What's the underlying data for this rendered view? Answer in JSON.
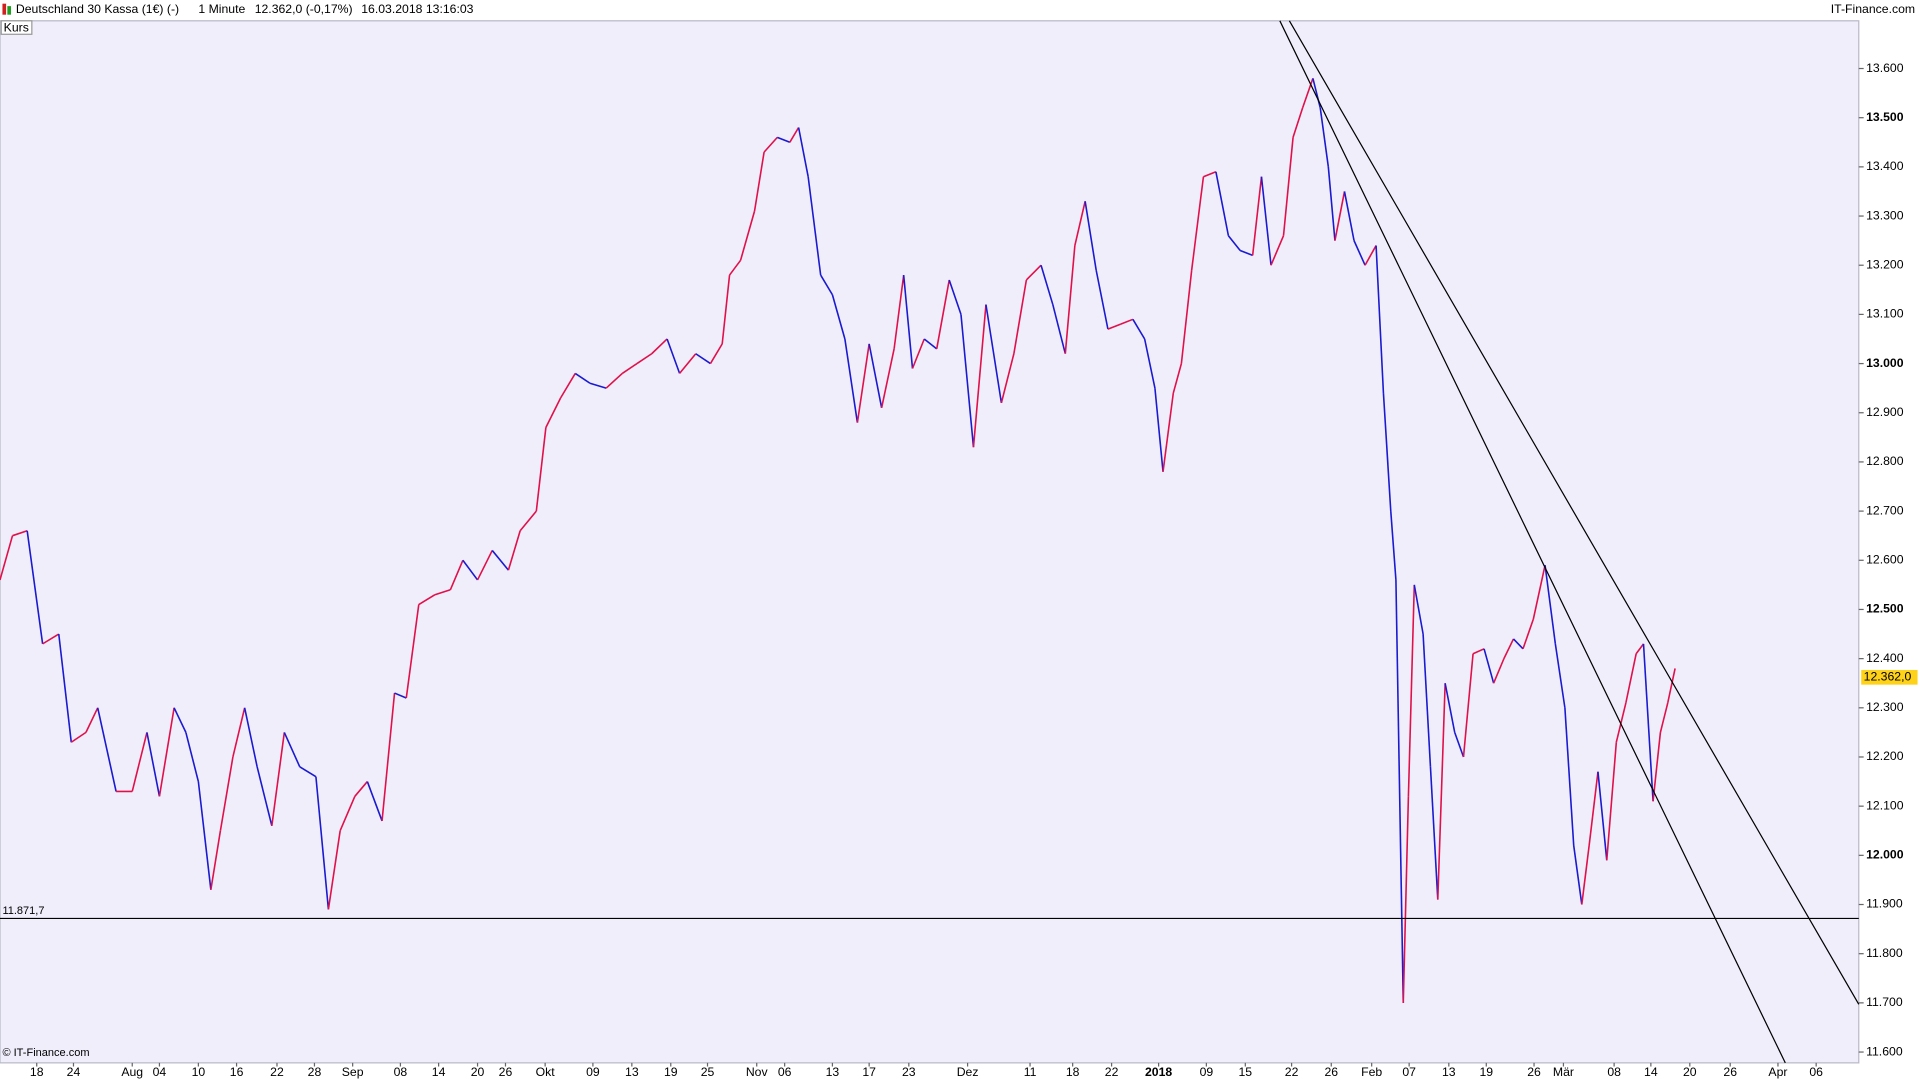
{
  "chart_data": {
    "type": "line",
    "header": {
      "title": "Deutschland 30 Kassa (1€) (-)",
      "interval": "1 Minute",
      "quote": "12.362,0 (-0,17%)",
      "timestamp": "16.03.2018 13:16:03",
      "brand": "IT-Finance.com"
    },
    "panel_label": "Kurs",
    "footer": "© IT-Finance.com",
    "xlim": [
      0,
      253
    ],
    "ylim": [
      11578,
      13697
    ],
    "yticks": [
      {
        "value": 11600,
        "label": "11.600"
      },
      {
        "value": 11700,
        "label": "11.700"
      },
      {
        "value": 11800,
        "label": "11.800"
      },
      {
        "value": 11900,
        "label": "11.900"
      },
      {
        "value": 12000,
        "label": "12.000"
      },
      {
        "value": 12100,
        "label": "12.100"
      },
      {
        "value": 12200,
        "label": "12.200"
      },
      {
        "value": 12300,
        "label": "12.300"
      },
      {
        "value": 12400,
        "label": "12.400"
      },
      {
        "value": 12500,
        "label": "12.500"
      },
      {
        "value": 12600,
        "label": "12.600"
      },
      {
        "value": 12700,
        "label": "12.700"
      },
      {
        "value": 12800,
        "label": "12.800"
      },
      {
        "value": 12900,
        "label": "12.900"
      },
      {
        "value": 13000,
        "label": "13.000"
      },
      {
        "value": 13100,
        "label": "13.100"
      },
      {
        "value": 13200,
        "label": "13.200"
      },
      {
        "value": 13300,
        "label": "13.300"
      },
      {
        "value": 13400,
        "label": "13.400"
      },
      {
        "value": 13500,
        "label": "13.500"
      },
      {
        "value": 13600,
        "label": "13.600"
      }
    ],
    "xticks": [
      {
        "value": 5,
        "label": "18"
      },
      {
        "value": 10,
        "label": "24"
      },
      {
        "value": 18,
        "label": "Aug"
      },
      {
        "value": 21.7,
        "label": "04"
      },
      {
        "value": 27,
        "label": "10"
      },
      {
        "value": 32.2,
        "label": "16"
      },
      {
        "value": 37.7,
        "label": "22"
      },
      {
        "value": 42.8,
        "label": "28"
      },
      {
        "value": 48,
        "label": "Sep"
      },
      {
        "value": 54.5,
        "label": "08"
      },
      {
        "value": 59.7,
        "label": "14"
      },
      {
        "value": 65,
        "label": "20"
      },
      {
        "value": 68.8,
        "label": "26"
      },
      {
        "value": 74.2,
        "label": "Okt"
      },
      {
        "value": 80.7,
        "label": "09"
      },
      {
        "value": 86,
        "label": "13"
      },
      {
        "value": 91.3,
        "label": "19"
      },
      {
        "value": 96.3,
        "label": "25"
      },
      {
        "value": 103,
        "label": "Nov"
      },
      {
        "value": 106.8,
        "label": "06"
      },
      {
        "value": 113.3,
        "label": "13"
      },
      {
        "value": 118.3,
        "label": "17"
      },
      {
        "value": 123.7,
        "label": "23"
      },
      {
        "value": 131.7,
        "label": "Dez"
      },
      {
        "value": 140.2,
        "label": "11"
      },
      {
        "value": 146,
        "label": "18"
      },
      {
        "value": 151.3,
        "label": "22"
      },
      {
        "value": 157.7,
        "label": "2018"
      },
      {
        "value": 164.2,
        "label": "09"
      },
      {
        "value": 169.5,
        "label": "15"
      },
      {
        "value": 175.8,
        "label": "22"
      },
      {
        "value": 181.2,
        "label": "26"
      },
      {
        "value": 186.7,
        "label": "Feb"
      },
      {
        "value": 191.8,
        "label": "07"
      },
      {
        "value": 197.2,
        "label": "13"
      },
      {
        "value": 202.3,
        "label": "19"
      },
      {
        "value": 208.8,
        "label": "26"
      },
      {
        "value": 212.8,
        "label": "Mär"
      },
      {
        "value": 219.7,
        "label": "08"
      },
      {
        "value": 224.7,
        "label": "14"
      },
      {
        "value": 230,
        "label": "20"
      },
      {
        "value": 235.5,
        "label": "26"
      },
      {
        "value": 242,
        "label": "Apr"
      },
      {
        "value": 247.2,
        "label": "06"
      }
    ],
    "up_color": "#e0104a",
    "down_color": "#1a1ad0",
    "x": [
      0,
      1.7,
      3.7,
      5.8,
      8,
      9.7,
      11.7,
      13.3,
      15.8,
      18,
      20,
      21.7,
      23.7,
      25.3,
      27,
      28.7,
      30,
      31.7,
      33.3,
      35,
      37,
      38.7,
      40.8,
      43,
      44.7,
      46.3,
      48.3,
      50,
      52,
      53.7,
      55.3,
      57,
      59.2,
      61.3,
      63,
      65,
      67,
      69.2,
      70.8,
      73,
      74.3,
      76.3,
      78.3,
      80.3,
      82.5,
      84.7,
      86.7,
      88.7,
      90.8,
      92.5,
      94.7,
      96.7,
      98.3,
      99.3,
      100.8,
      102.7,
      104,
      105.8,
      107.5,
      108.7,
      110,
      111.7,
      113.3,
      115,
      116.7,
      118.3,
      120,
      121.7,
      123,
      124.2,
      125.8,
      127.5,
      129.2,
      130.8,
      132.5,
      134.2,
      136.3,
      138,
      139.7,
      141.7,
      143.3,
      145,
      146.3,
      147.7,
      149.2,
      150.8,
      152.5,
      154.2,
      155.8,
      157.2,
      158.3,
      159.7,
      160.8,
      162.2,
      163.8,
      165.5,
      167.2,
      168.8,
      170.5,
      171.7,
      173,
      174.7,
      176,
      177.3,
      178.7,
      179.7,
      180.8,
      181.7,
      183,
      184.3,
      185.8,
      187.3,
      188.3,
      189.3,
      190,
      191,
      191.7,
      192.5,
      193.7,
      194.7,
      195.7,
      196.7,
      198,
      199.2,
      200.5,
      202,
      203.3,
      204.7,
      206,
      207.3,
      208.7,
      210.3,
      211.7,
      213,
      214.2,
      215.3,
      216.3,
      217.5,
      218.7,
      220,
      221.3,
      222.7,
      223.7,
      225,
      226,
      227,
      228
    ],
    "values": [
      12560,
      12650,
      12660,
      12430,
      12450,
      12230,
      12250,
      12300,
      12130,
      12130,
      12250,
      12120,
      12300,
      12250,
      12150,
      11930,
      12050,
      12200,
      12300,
      12180,
      12060,
      12250,
      12180,
      12160,
      11890,
      12050,
      12120,
      12150,
      12070,
      12330,
      12320,
      12510,
      12530,
      12540,
      12600,
      12560,
      12620,
      12580,
      12660,
      12700,
      12870,
      12930,
      12980,
      12960,
      12950,
      12980,
      13000,
      13020,
      13050,
      12980,
      13020,
      13000,
      13040,
      13180,
      13210,
      13310,
      13430,
      13460,
      13450,
      13480,
      13380,
      13180,
      13140,
      13050,
      12880,
      13040,
      12910,
      13030,
      13180,
      12990,
      13050,
      13030,
      13170,
      13100,
      12830,
      13120,
      12920,
      13020,
      13170,
      13200,
      13120,
      13020,
      13240,
      13330,
      13190,
      13070,
      13080,
      13090,
      13050,
      12950,
      12780,
      12940,
      13000,
      13190,
      13380,
      13390,
      13260,
      13230,
      13220,
      13380,
      13200,
      13260,
      13460,
      13520,
      13580,
      13520,
      13400,
      13250,
      13350,
      13250,
      13200,
      13240,
      12940,
      12700,
      12560,
      11700,
      12120,
      12550,
      12450,
      12180,
      11910,
      12350,
      12250,
      12200,
      12410,
      12420,
      12350,
      12400,
      12440,
      12420,
      12480,
      12590,
      12430,
      12300,
      12020,
      11900,
      12020,
      12170,
      11990,
      12230,
      12310,
      12410,
      12430,
      12110,
      12250,
      12310,
      12380
    ],
    "hline": {
      "value": 11871.7,
      "label": "11.871,7"
    },
    "last_price": {
      "value": 12362,
      "label": "12.362,0"
    },
    "trendlines": [
      {
        "x": [
          174.2,
          243
        ],
        "y": [
          13697,
          11578
        ]
      },
      {
        "x": [
          175.5,
          253
        ],
        "y": [
          13697,
          11697
        ]
      }
    ]
  }
}
